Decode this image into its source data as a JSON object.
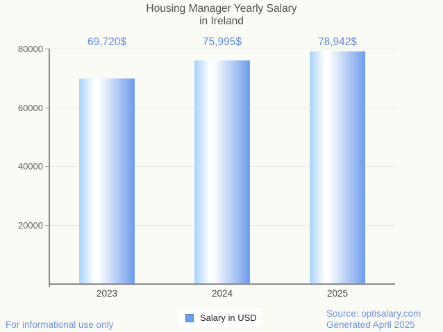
{
  "title": {
    "line1": "Housing Manager Yearly Salary",
    "line2": "in Ireland"
  },
  "chart_data": {
    "type": "bar",
    "title": "Housing Manager Yearly Salary in Ireland",
    "categories": [
      "2023",
      "2024",
      "2025"
    ],
    "series": [
      {
        "name": "Salary in USD",
        "values": [
          69720,
          75995,
          78942
        ]
      }
    ],
    "data_labels": [
      "69,720$",
      "75,995$",
      "78,942$"
    ],
    "xlabel": "",
    "ylabel": "",
    "ylim": [
      0,
      80000
    ],
    "yticks": [
      20000,
      40000,
      60000,
      80000
    ],
    "grid": true,
    "legend_position": "bottom",
    "bar_gradient": [
      "#a9d2fb",
      "#ffffff",
      "#6f9ceb"
    ]
  },
  "legend": {
    "label": "Salary in USD",
    "swatch_fill": "#6d9eeb",
    "swatch_border": "#4d7fd0"
  },
  "footer": {
    "left": "For informational use only",
    "source": "Source: optisalary.com",
    "generated": "Generated April 2025"
  },
  "colors": {
    "accent_blue": "#5f88d7",
    "footer_blue": "#6b90da",
    "axis": "#8b8b8b",
    "grid": "#e6e6e6",
    "title": "#4d4d4d",
    "tick_label": "#5e5e5e",
    "category_label": "#3f3f3f",
    "background": "#fbfbf6"
  }
}
